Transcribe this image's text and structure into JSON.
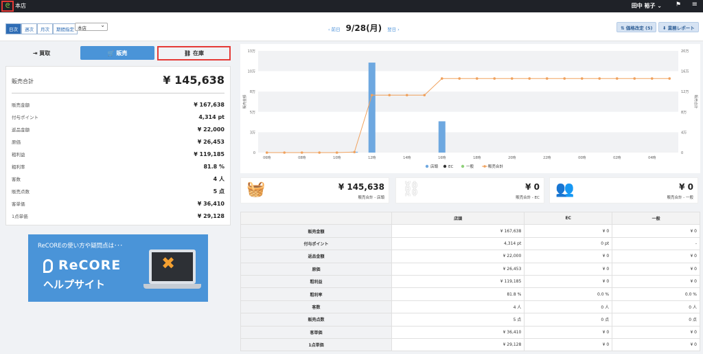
{
  "topbar": {
    "store": "本店",
    "user": "田中 裕子 ⌄",
    "flag": "⚑",
    "menu": "≡",
    "logo": "ᘓ"
  },
  "period_tabs": [
    "日次",
    "週次",
    "月次",
    "期間指定"
  ],
  "store_select": "本店",
  "nav": {
    "prev": "‹ 前日",
    "date": "9/28(月)",
    "next": "翌日 ›"
  },
  "buttons": {
    "price": "⇅ 価格改定 (5)",
    "report": "⬇ 業務レポート"
  },
  "mode_tabs": [
    {
      "label": "⇥ 買取"
    },
    {
      "label": "🛒 販売"
    },
    {
      "label": "⛓ 在庫"
    }
  ],
  "summary": {
    "title": "販売合計",
    "total": "¥ 145,638",
    "rows": [
      {
        "k": "販売金額",
        "v": "¥ 167,638"
      },
      {
        "k": "付与ポイント",
        "v": "4,314 pt"
      },
      {
        "k": "返品金額",
        "v": "¥ 22,000"
      },
      {
        "k": "原価",
        "v": "¥ 26,453"
      },
      {
        "k": "粗利益",
        "v": "¥ 119,185"
      },
      {
        "k": "粗利率",
        "v": "81.8 %"
      },
      {
        "k": "客数",
        "v": "4 人"
      },
      {
        "k": "販売点数",
        "v": "5 点"
      },
      {
        "k": "客単価",
        "v": "¥ 36,410"
      },
      {
        "k": "1点単価",
        "v": "¥ 29,128"
      }
    ]
  },
  "banner": {
    "line1": "ReCOREの使い方や疑問点は･･･",
    "line2": "ReCORE",
    "line3": "ヘルプサイト"
  },
  "chart_data": {
    "type": "bar+line",
    "x": [
      "06時",
      "",
      "08時",
      "",
      "10時",
      "",
      "12時",
      "",
      "14時",
      "",
      "16時",
      "",
      "18時",
      "",
      "20時",
      "",
      "22時",
      "",
      "00時",
      "",
      "02時",
      "",
      "04時",
      ""
    ],
    "left_ticks": [
      "0",
      "3万",
      "5万",
      "8万",
      "10万",
      "13万"
    ],
    "right_ticks": [
      "0",
      "4万",
      "8万",
      "12万",
      "16万",
      "20万"
    ],
    "ylabel_left": "販売金額",
    "ylabel_right": "販売合計",
    "ylim_left": [
      0,
      130000
    ],
    "ylim_right": [
      0,
      200000
    ],
    "series": [
      {
        "name": "店頭",
        "color": "#6ea8e0",
        "values": [
          0,
          0,
          0,
          0,
          0,
          1000,
          115000,
          0,
          0,
          0,
          40000,
          0,
          0,
          0,
          0,
          0,
          0,
          0,
          0,
          0,
          0,
          0,
          0,
          0
        ]
      },
      {
        "name": "EC",
        "color": "#333333",
        "values": [
          0,
          0,
          0,
          0,
          0,
          0,
          0,
          0,
          0,
          0,
          0,
          0,
          0,
          0,
          0,
          0,
          0,
          0,
          0,
          0,
          0,
          0,
          0,
          0
        ]
      },
      {
        "name": "一般",
        "color": "#8fd17a",
        "values": [
          0,
          0,
          0,
          0,
          0,
          0,
          0,
          0,
          0,
          0,
          0,
          0,
          0,
          0,
          0,
          0,
          0,
          0,
          0,
          0,
          0,
          0,
          0,
          0
        ]
      },
      {
        "name": "販売合計",
        "color": "#f0a25e",
        "values": [
          0,
          0,
          0,
          0,
          0,
          1000,
          113000,
          113000,
          113000,
          113000,
          145638,
          145638,
          145638,
          145638,
          145638,
          145638,
          145638,
          145638,
          145638,
          145638,
          145638,
          145638,
          145638,
          145638
        ]
      }
    ]
  },
  "stats": [
    {
      "value": "¥ 145,638",
      "label": "販売合計 - 店頭"
    },
    {
      "value": "¥ 0",
      "label": "販売合計 - EC"
    },
    {
      "value": "¥ 0",
      "label": "販売合計 - 一般"
    }
  ],
  "table": {
    "headers": [
      "",
      "店頭",
      "EC",
      "一般"
    ],
    "rows": [
      [
        "販売金額",
        "¥ 167,638",
        "¥ 0",
        "¥ 0"
      ],
      [
        "付与ポイント",
        "4,314 pt",
        "0 pt",
        "-"
      ],
      [
        "返品金額",
        "¥ 22,000",
        "¥ 0",
        "¥ 0"
      ],
      [
        "原価",
        "¥ 26,453",
        "¥ 0",
        "¥ 0"
      ],
      [
        "粗利益",
        "¥ 119,185",
        "¥ 0",
        "¥ 0"
      ],
      [
        "粗利率",
        "81.8 %",
        "0.0 %",
        "0.0 %"
      ],
      [
        "客数",
        "4 人",
        "0 人",
        "0 人"
      ],
      [
        "販売点数",
        "5 点",
        "0 点",
        "0 点"
      ],
      [
        "客単価",
        "¥ 36,410",
        "¥ 0",
        "¥ 0"
      ],
      [
        "1点単価",
        "¥ 29,128",
        "¥ 0",
        "¥ 0"
      ]
    ]
  }
}
